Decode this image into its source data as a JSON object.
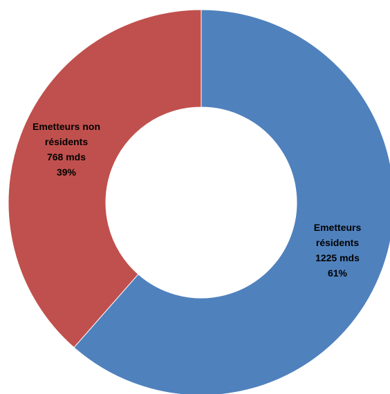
{
  "chart_data": {
    "type": "pie",
    "donut": true,
    "title": "",
    "slices": [
      {
        "category": "Emetteurs résidents",
        "value": 1225,
        "value_label": "1225 mds",
        "percent": "61%",
        "color": "#4F81BD",
        "label_lines": [
          "Emetteurs",
          "résidents",
          "1225 mds",
          "61%"
        ]
      },
      {
        "category": "Emetteurs non résidents",
        "value": 768,
        "value_label": "768 mds",
        "percent": "39%",
        "color": "#C0504D",
        "label_lines": [
          "Emetteurs non",
          "résidents",
          "768 mds",
          "39%"
        ]
      }
    ]
  }
}
